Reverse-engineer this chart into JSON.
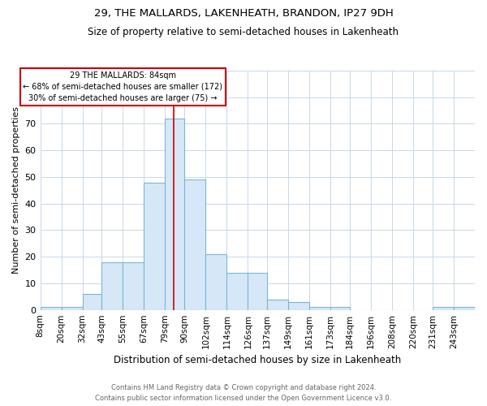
{
  "title": "29, THE MALLARDS, LAKENHEATH, BRANDON, IP27 9DH",
  "subtitle": "Size of property relative to semi-detached houses in Lakenheath",
  "xlabel": "Distribution of semi-detached houses by size in Lakenheath",
  "ylabel": "Number of semi-detached properties",
  "footnote": "Contains HM Land Registry data © Crown copyright and database right 2024.\nContains public sector information licensed under the Open Government Licence v3.0.",
  "bin_labels": [
    "8sqm",
    "20sqm",
    "32sqm",
    "43sqm",
    "55sqm",
    "67sqm",
    "79sqm",
    "90sqm",
    "102sqm",
    "114sqm",
    "126sqm",
    "137sqm",
    "149sqm",
    "161sqm",
    "173sqm",
    "184sqm",
    "196sqm",
    "208sqm",
    "220sqm",
    "231sqm",
    "243sqm"
  ],
  "bin_edges": [
    8,
    20,
    32,
    43,
    55,
    67,
    79,
    90,
    102,
    114,
    126,
    137,
    149,
    161,
    173,
    184,
    196,
    208,
    220,
    231,
    243,
    255
  ],
  "counts": [
    1,
    1,
    6,
    18,
    18,
    48,
    72,
    49,
    21,
    14,
    14,
    4,
    3,
    1,
    1,
    0,
    0,
    0,
    0,
    1,
    1
  ],
  "property_size": 84,
  "bar_color": "#d6e8f7",
  "bar_edge_color": "#7ab5d9",
  "vline_color": "#cc0000",
  "annotation_box_facecolor": "#ffffff",
  "annotation_border_color": "#cc0000",
  "annotation_text_line1": "29 THE MALLARDS: 84sqm",
  "annotation_text_line2": "← 68% of semi-detached houses are smaller (172)",
  "annotation_text_line3": "30% of semi-detached houses are larger (75) →",
  "ylim": [
    0,
    90
  ],
  "yticks": [
    0,
    10,
    20,
    30,
    40,
    50,
    60,
    70,
    80,
    90
  ],
  "background_color": "#ffffff",
  "grid_color": "#c8d8e8",
  "title_fontsize": 9.5,
  "subtitle_fontsize": 8.5,
  "xlabel_fontsize": 8.5,
  "ylabel_fontsize": 8.0,
  "tick_fontsize": 7.5,
  "footnote_fontsize": 6.0
}
